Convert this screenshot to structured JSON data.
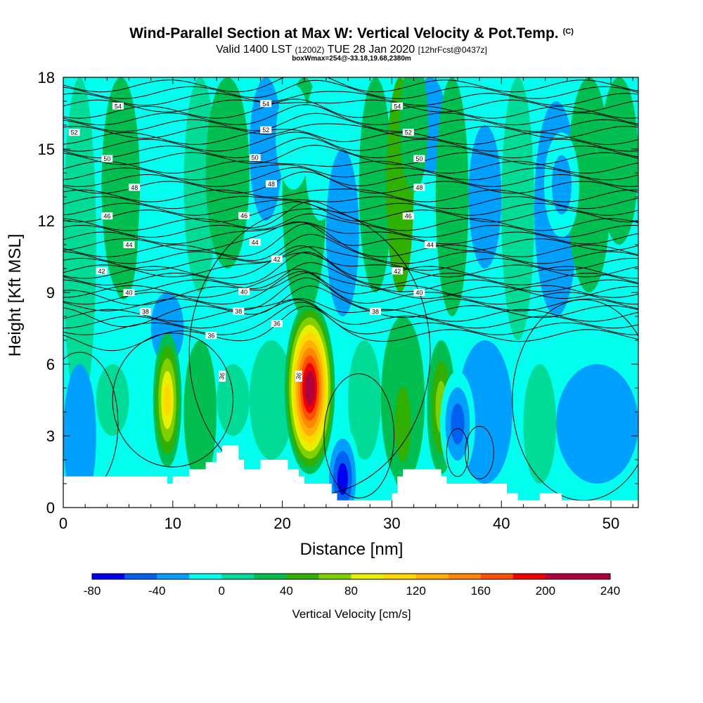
{
  "title": "Wind-Parallel Section at Max W: Vertical Velocity & Pot.Temp.",
  "copyright": "(C)",
  "subtitle_main": "Valid 1400 LST",
  "subtitle_z": "(1200Z)",
  "subtitle_date": "TUE 28 Jan 2020",
  "subtitle_fcst": "[12hrFcst@0437z]",
  "subtitle_box": "boxWmax=254@-33.18,19.68,2380m",
  "colors": {
    "background": "#00ffef",
    "terrain": "#ffffff",
    "contour": "#000000",
    "colorbar": [
      "#0000f0",
      "#0060f0",
      "#00a0ff",
      "#00ffef",
      "#00dc98",
      "#00be50",
      "#30b000",
      "#80d000",
      "#e8f000",
      "#ffd800",
      "#ffb000",
      "#ff8800",
      "#ff5000",
      "#f00000",
      "#b0003c"
    ]
  },
  "chart_data": {
    "type": "heatmap",
    "xlabel": "Distance [nm]",
    "ylabel": "Height [Kft MSL]",
    "xlim": [
      0,
      52.5
    ],
    "ylim": [
      0,
      18
    ],
    "xticks": [
      0,
      10,
      20,
      30,
      40,
      50
    ],
    "yticks": [
      0,
      3,
      6,
      9,
      12,
      15,
      18
    ],
    "colorbar": {
      "label": "Vertical Velocity [cm/s]",
      "range": [
        -80,
        240
      ],
      "ticks": [
        -80,
        -40,
        0,
        40,
        80,
        120,
        160,
        200,
        240
      ],
      "step": 20
    },
    "w_features": [
      {
        "x": 9.5,
        "y": 4.5,
        "w": 120,
        "kind": "updraft"
      },
      {
        "x": 22.5,
        "y": 5.0,
        "w": 230,
        "kind": "updraft"
      },
      {
        "x": 31.0,
        "y": 3.5,
        "w": 50,
        "kind": "updraft"
      },
      {
        "x": 34.5,
        "y": 4.2,
        "w": 70,
        "kind": "updraft"
      },
      {
        "x": 25.5,
        "y": 1.2,
        "w": -70,
        "kind": "downdraft"
      },
      {
        "x": 36.0,
        "y": 3.5,
        "w": -60,
        "kind": "downdraft"
      },
      {
        "x": 45.5,
        "y": 13.5,
        "w": -30,
        "kind": "downdraft"
      },
      {
        "x": 21.0,
        "y": 15.5,
        "w": -25,
        "kind": "downdraft"
      },
      {
        "x": 5.5,
        "y": 11.5,
        "w": 40,
        "kind": "updraft"
      },
      {
        "x": 32.0,
        "y": 16.0,
        "w": 40,
        "kind": "updraft"
      }
    ],
    "theta_contours": [
      {
        "value": 54,
        "label": "54"
      },
      {
        "value": 52,
        "label": "52"
      },
      {
        "value": 50,
        "label": "50"
      },
      {
        "value": 48,
        "label": "48"
      },
      {
        "value": 46,
        "label": "46"
      },
      {
        "value": 44,
        "label": "44"
      },
      {
        "value": 42,
        "label": "42"
      },
      {
        "value": 40,
        "label": "40"
      },
      {
        "value": 38,
        "label": "38"
      },
      {
        "value": 36,
        "label": "36"
      }
    ],
    "terrain": [
      [
        0,
        1.3
      ],
      [
        9.5,
        1.3
      ],
      [
        9.5,
        1.0
      ],
      [
        10.0,
        1.0
      ],
      [
        10.0,
        1.3
      ],
      [
        11.5,
        1.3
      ],
      [
        11.5,
        1.6
      ],
      [
        13.0,
        1.6
      ],
      [
        13.0,
        1.9
      ],
      [
        14.0,
        1.9
      ],
      [
        14.0,
        2.3
      ],
      [
        14.5,
        2.3
      ],
      [
        14.5,
        2.6
      ],
      [
        16.0,
        2.6
      ],
      [
        16.0,
        2.0
      ],
      [
        16.5,
        2.0
      ],
      [
        16.5,
        1.6
      ],
      [
        18.0,
        1.6
      ],
      [
        18.0,
        2.0
      ],
      [
        20.5,
        2.0
      ],
      [
        20.5,
        1.6
      ],
      [
        21.5,
        1.6
      ],
      [
        21.5,
        1.3
      ],
      [
        22.0,
        1.3
      ],
      [
        22.0,
        1.0
      ],
      [
        24.5,
        1.0
      ],
      [
        24.5,
        0.6
      ],
      [
        25.0,
        0.6
      ],
      [
        25.0,
        0.3
      ],
      [
        30.0,
        0.3
      ],
      [
        30.0,
        0.6
      ],
      [
        30.5,
        0.6
      ],
      [
        30.5,
        1.3
      ],
      [
        31.0,
        1.3
      ],
      [
        31.0,
        1.6
      ],
      [
        34.5,
        1.6
      ],
      [
        34.5,
        1.3
      ],
      [
        35.0,
        1.3
      ],
      [
        35.0,
        1.0
      ],
      [
        40.5,
        1.0
      ],
      [
        40.5,
        0.6
      ],
      [
        41.5,
        0.6
      ],
      [
        41.5,
        0.3
      ],
      [
        43.5,
        0.3
      ],
      [
        43.5,
        0.6
      ],
      [
        45.5,
        0.6
      ],
      [
        45.5,
        0.3
      ],
      [
        51.0,
        0.3
      ],
      [
        51.0,
        0.3
      ],
      [
        52.5,
        0.3
      ]
    ]
  }
}
